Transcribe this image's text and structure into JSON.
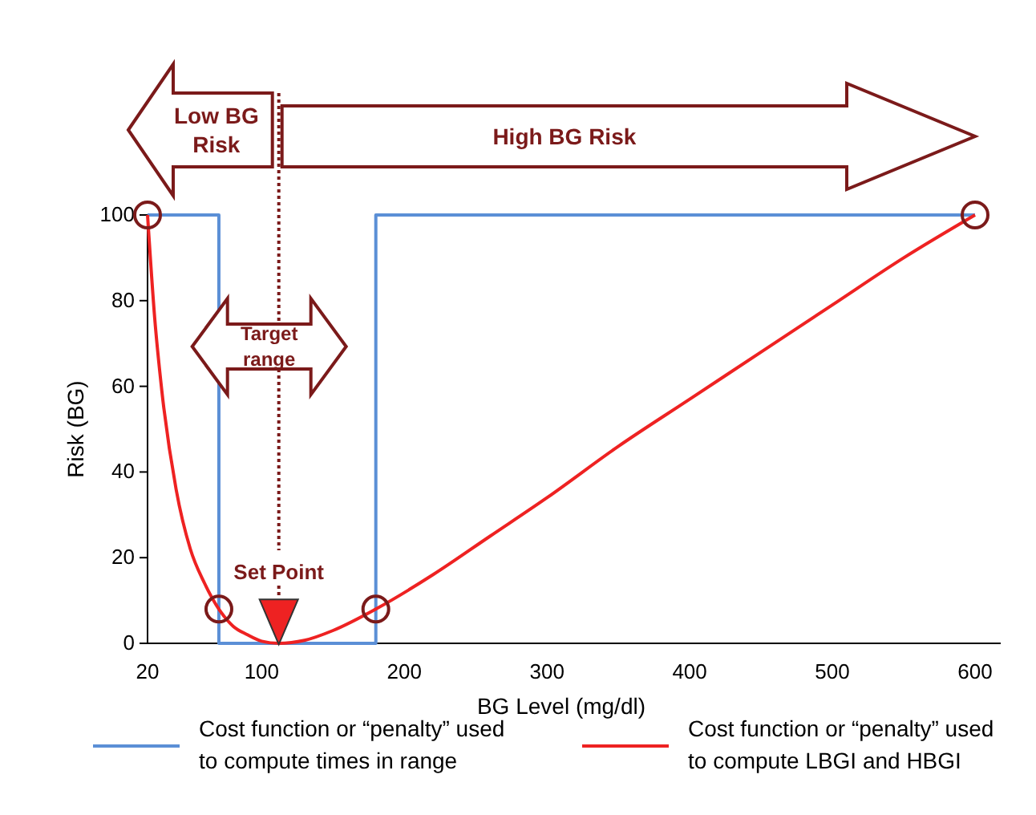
{
  "chart_data": {
    "type": "line",
    "xlabel": "BG Level (mg/dl)",
    "ylabel": "Risk (BG)",
    "xlim": [
      20,
      600
    ],
    "xticks": [
      20,
      100,
      200,
      300,
      400,
      500,
      600
    ],
    "ylim": [
      0,
      100
    ],
    "yticks": [
      0,
      20,
      40,
      60,
      80,
      100
    ],
    "grid": false,
    "legend": "bottom",
    "series": [
      {
        "name": "Cost function or “penalty” used to compute times in range",
        "color": "#5b8fd6",
        "x": [
          20,
          70,
          70,
          180,
          180,
          600
        ],
        "values": [
          100,
          100,
          0,
          0,
          100,
          100
        ]
      },
      {
        "name": "Cost function or “penalty” used to compute LBGI and HBGI",
        "color": "#ee2222",
        "x": [
          20,
          25,
          30,
          40,
          50,
          60,
          70,
          80,
          90,
          100,
          112,
          130,
          150,
          180,
          220,
          260,
          300,
          350,
          400,
          450,
          500,
          550,
          600
        ],
        "values": [
          100,
          76,
          59,
          36,
          22,
          14,
          8,
          4,
          2,
          0.5,
          0,
          0.7,
          3,
          8,
          16,
          25,
          34,
          46,
          57,
          68,
          79,
          90,
          100
        ]
      },
      {
        "color": "#7b1a1a",
        "type": "scatter",
        "marker": "circle",
        "x": [
          20,
          70,
          180,
          600
        ],
        "values": [
          100,
          8,
          8,
          100
        ]
      },
      {
        "color": "#ee2222",
        "type": "scatter",
        "marker": "triangle",
        "x": [
          112
        ],
        "values": [
          5
        ]
      }
    ],
    "ref_lines": [
      {
        "axis": "x",
        "value": 112,
        "label": "Set Point",
        "color": "#7b1a1a",
        "line_style": "dotted"
      }
    ],
    "annotations": [
      "Low BG Risk",
      "High BG Risk",
      "Target range"
    ]
  }
}
